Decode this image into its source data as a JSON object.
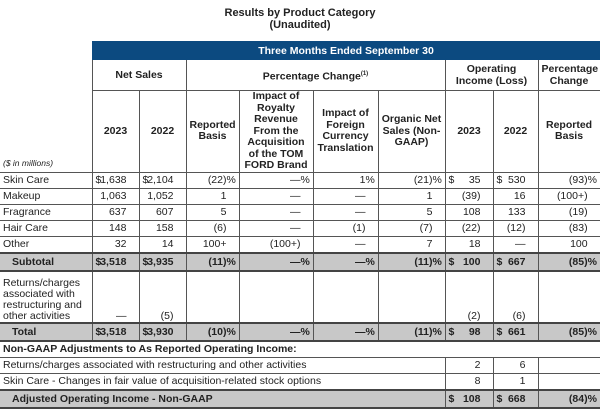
{
  "title": "Results by Product Category",
  "subtitle": "(Unaudited)",
  "band": "Three Months Ended September 30",
  "groups": {
    "net_sales": "Net Sales",
    "pct_change": "Percentage Change",
    "pct_change_note": "(1)",
    "op_income": "Operating Income (Loss)",
    "pct_change2": "Percentage Change"
  },
  "columns": [
    "2023",
    "2022",
    "Reported Basis",
    "Impact of Royalty Revenue From the Acquisition of the TOM FORD Brand",
    "Impact of Foreign Currency Translation",
    "Organic Net Sales (Non-GAAP)",
    "2023",
    "2022",
    "Reported Basis"
  ],
  "units": "($ in millions)",
  "rows": [
    {
      "label": "Skin Care",
      "style": "r",
      "cells": [
        {
          "d": "$",
          "v": "1,638"
        },
        {
          "d": "$",
          "v": "2,104"
        },
        {
          "v": "(22)",
          "s": "%"
        },
        {
          "v": "—",
          "s": "%"
        },
        {
          "v": "1",
          "s": "%"
        },
        {
          "v": "(21)",
          "s": "%"
        },
        {
          "d": "$",
          "v": "35"
        },
        {
          "d": "$",
          "v": "530"
        },
        {
          "v": "(93)",
          "s": "%"
        }
      ]
    },
    {
      "label": "Makeup",
      "style": "r",
      "cells": [
        {
          "v": "1,063"
        },
        {
          "v": "1,052"
        },
        {
          "v": "1"
        },
        {
          "v": "—"
        },
        {
          "v": "—"
        },
        {
          "v": "1"
        },
        {
          "v": "(39)"
        },
        {
          "v": "16"
        },
        {
          "v": "(100+)"
        }
      ]
    },
    {
      "label": "Fragrance",
      "style": "r",
      "cells": [
        {
          "v": "637"
        },
        {
          "v": "607"
        },
        {
          "v": "5"
        },
        {
          "v": "—"
        },
        {
          "v": "—"
        },
        {
          "v": "5"
        },
        {
          "v": "108"
        },
        {
          "v": "133"
        },
        {
          "v": "(19)"
        }
      ]
    },
    {
      "label": "Hair Care",
      "style": "r",
      "cells": [
        {
          "v": "148"
        },
        {
          "v": "158"
        },
        {
          "v": "(6)"
        },
        {
          "v": "—"
        },
        {
          "v": "(1)"
        },
        {
          "v": "(7)"
        },
        {
          "v": "(22)"
        },
        {
          "v": "(12)"
        },
        {
          "v": "(83)"
        }
      ]
    },
    {
      "label": "Other",
      "style": "r",
      "cells": [
        {
          "v": "32"
        },
        {
          "v": "14"
        },
        {
          "v": "100+"
        },
        {
          "v": "(100+)"
        },
        {
          "v": "—"
        },
        {
          "v": "7"
        },
        {
          "v": "18"
        },
        {
          "v": "—"
        },
        {
          "v": "100"
        }
      ]
    },
    {
      "label": "Subtotal",
      "style": "gray",
      "cells": [
        {
          "d": "$",
          "v": "3,518"
        },
        {
          "d": "$",
          "v": "3,935"
        },
        {
          "v": "(11)",
          "s": "%"
        },
        {
          "v": "—",
          "s": "%"
        },
        {
          "v": "—",
          "s": "%"
        },
        {
          "v": "(11)",
          "s": "%"
        },
        {
          "d": "$",
          "v": "100"
        },
        {
          "d": "$",
          "v": "667"
        },
        {
          "v": "(85)",
          "s": "%"
        }
      ]
    },
    {
      "label": "Returns/charges associated with restructuring and other activities",
      "style": "tall",
      "cells": [
        {
          "v": "—"
        },
        {
          "v": "(5)"
        },
        {
          "v": ""
        },
        {
          "v": ""
        },
        {
          "v": ""
        },
        {
          "v": ""
        },
        {
          "v": "(2)"
        },
        {
          "v": "(6)"
        },
        {
          "v": ""
        }
      ]
    },
    {
      "label": "Total",
      "style": "gray",
      "cells": [
        {
          "d": "$",
          "v": "3,518"
        },
        {
          "d": "$",
          "v": "3,930"
        },
        {
          "v": "(10)",
          "s": "%"
        },
        {
          "v": "—",
          "s": "%"
        },
        {
          "v": "—",
          "s": "%"
        },
        {
          "v": "(11)",
          "s": "%"
        },
        {
          "d": "$",
          "v": "98"
        },
        {
          "d": "$",
          "v": "661"
        },
        {
          "v": "(85)",
          "s": "%"
        }
      ]
    }
  ],
  "nongaap": {
    "heading": "Non-GAAP Adjustments to As Reported Operating Income:",
    "rows": [
      {
        "label": "Returns/charges associated with restructuring and other activities",
        "style": "r",
        "cells": [
          {
            "v": "2"
          },
          {
            "v": "6"
          },
          {
            "v": ""
          }
        ]
      },
      {
        "label": "Skin Care - Changes in fair value of acquisition-related stock options",
        "style": "r",
        "cells": [
          {
            "v": "8"
          },
          {
            "v": "1"
          },
          {
            "v": ""
          }
        ]
      },
      {
        "label": "Adjusted Operating Income - Non-GAAP",
        "style": "gray",
        "cells": [
          {
            "d": "$",
            "v": "108"
          },
          {
            "d": "$",
            "v": "668"
          },
          {
            "v": "(84)",
            "s": "%"
          }
        ]
      }
    ]
  }
}
